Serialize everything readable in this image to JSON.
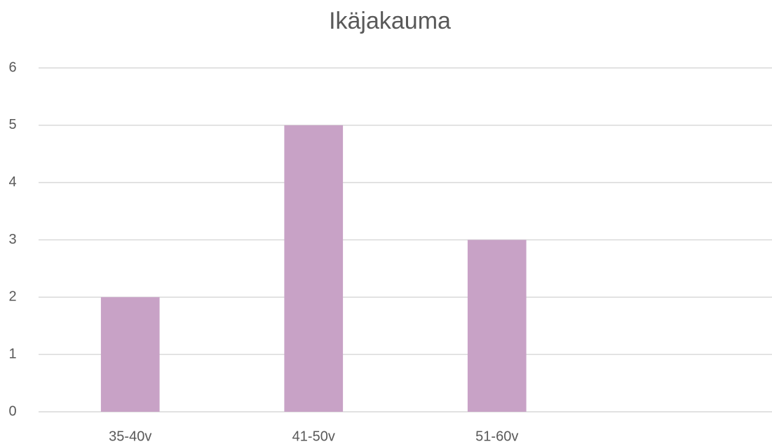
{
  "chart_data": {
    "type": "bar",
    "title": "Ikäjakauma",
    "categories": [
      "35-40v",
      "41-50v",
      "51-60v",
      null
    ],
    "values": [
      2,
      5,
      3,
      null
    ],
    "color": "#c8a2c6",
    "ylim": [
      0,
      6
    ],
    "yticks": [
      0,
      1,
      2,
      3,
      4,
      5,
      6
    ],
    "grid": true
  }
}
